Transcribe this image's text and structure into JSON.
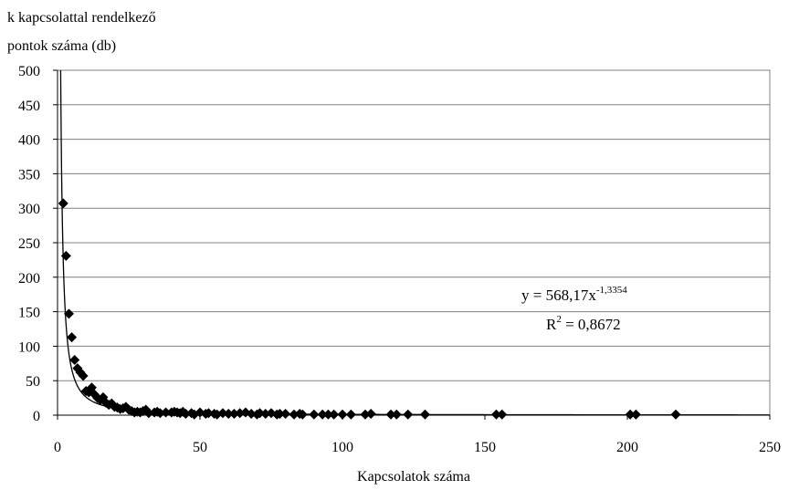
{
  "chart_data": {
    "type": "scatter",
    "ylabel_lines": [
      "k kapcsolattal rendelkező",
      "pontok száma (db)"
    ],
    "xlabel": "Kapcsolatok száma",
    "xlim": [
      0,
      250
    ],
    "ylim": [
      0,
      500
    ],
    "x_ticks": [
      0,
      50,
      100,
      150,
      200,
      250
    ],
    "y_ticks": [
      0,
      50,
      100,
      150,
      200,
      250,
      300,
      350,
      400,
      450,
      500
    ],
    "grid": "horizontal",
    "legend": "none",
    "marker_color": "#000000",
    "points": [
      [
        2,
        307
      ],
      [
        3,
        231
      ],
      [
        4,
        147
      ],
      [
        5,
        113
      ],
      [
        6,
        80
      ],
      [
        7,
        68
      ],
      [
        8,
        62
      ],
      [
        9,
        57
      ],
      [
        10,
        35
      ],
      [
        11,
        33
      ],
      [
        12,
        40
      ],
      [
        13,
        30
      ],
      [
        14,
        25
      ],
      [
        15,
        22
      ],
      [
        16,
        26
      ],
      [
        17,
        18
      ],
      [
        18,
        15
      ],
      [
        19,
        17
      ],
      [
        20,
        12
      ],
      [
        21,
        11
      ],
      [
        22,
        9
      ],
      [
        23,
        10
      ],
      [
        24,
        12
      ],
      [
        25,
        8
      ],
      [
        26,
        6
      ],
      [
        27,
        4
      ],
      [
        28,
        5
      ],
      [
        29,
        4
      ],
      [
        30,
        6
      ],
      [
        31,
        8
      ],
      [
        32,
        3
      ],
      [
        34,
        4
      ],
      [
        35,
        5
      ],
      [
        36,
        3
      ],
      [
        38,
        4
      ],
      [
        40,
        4
      ],
      [
        41,
        5
      ],
      [
        42,
        4
      ],
      [
        43,
        3
      ],
      [
        44,
        5
      ],
      [
        45,
        2
      ],
      [
        47,
        3
      ],
      [
        48,
        1
      ],
      [
        50,
        4
      ],
      [
        52,
        2
      ],
      [
        53,
        3
      ],
      [
        55,
        2
      ],
      [
        56,
        1
      ],
      [
        58,
        3
      ],
      [
        60,
        2
      ],
      [
        62,
        2
      ],
      [
        64,
        3
      ],
      [
        66,
        4
      ],
      [
        68,
        2
      ],
      [
        70,
        1
      ],
      [
        71,
        3
      ],
      [
        73,
        2
      ],
      [
        75,
        3
      ],
      [
        77,
        1
      ],
      [
        78,
        2
      ],
      [
        80,
        2
      ],
      [
        83,
        1
      ],
      [
        85,
        2
      ],
      [
        86,
        1
      ],
      [
        90,
        1
      ],
      [
        93,
        1
      ],
      [
        95,
        1
      ],
      [
        97,
        1
      ],
      [
        100,
        1
      ],
      [
        103,
        1
      ],
      [
        108,
        1
      ],
      [
        110,
        2
      ],
      [
        117,
        1
      ],
      [
        119,
        1
      ],
      [
        123,
        1
      ],
      [
        129,
        1
      ],
      [
        154,
        1
      ],
      [
        156,
        1
      ],
      [
        201,
        1
      ],
      [
        203,
        1
      ],
      [
        217,
        1
      ]
    ],
    "trendline": {
      "type": "power",
      "coefficient": 568.17,
      "exponent": -1.3354,
      "equation_parts": [
        "y = 568,17x",
        "-1,3354"
      ],
      "r2_parts": [
        "R",
        "2",
        " = 0,8672"
      ]
    }
  }
}
